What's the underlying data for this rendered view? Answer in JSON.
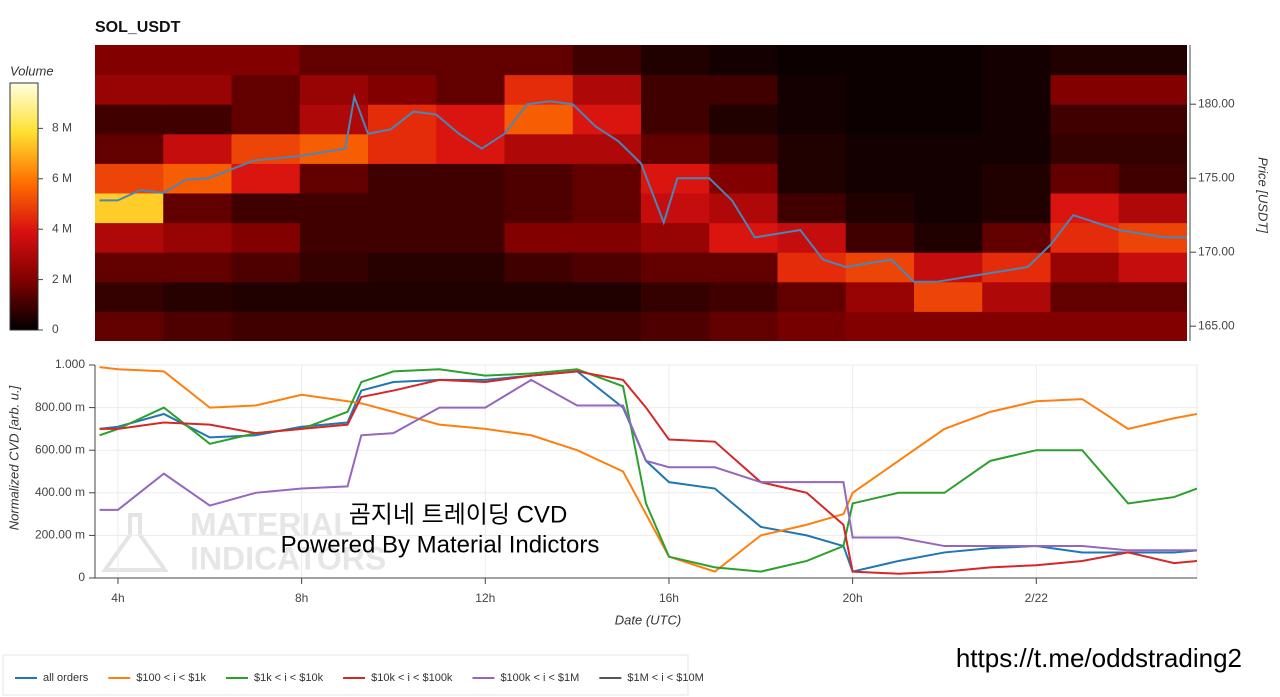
{
  "chart_data": [
    {
      "type": "heatmap",
      "title": "SOL_USDT",
      "y_label": "Price [USDT]",
      "colorbar_title": "Volume",
      "xlim": [
        3.5,
        27.5
      ],
      "ylim": [
        164,
        184
      ],
      "yticks": [
        {
          "value": 165,
          "label": "165.00"
        },
        {
          "value": 170,
          "label": "170.00"
        },
        {
          "value": 175,
          "label": "175.00"
        },
        {
          "value": 180,
          "label": "180.00"
        }
      ],
      "zlim": [
        0,
        9800000
      ],
      "zticks": [
        0,
        {
          "value": 2000000,
          "label": "2 M"
        },
        {
          "value": 4000000,
          "label": "4 M"
        },
        {
          "value": 6000000,
          "label": "6 M"
        },
        {
          "value": 8000000,
          "label": "8 M"
        }
      ],
      "xbins": [
        3.5,
        5,
        6.5,
        8,
        9.5,
        11,
        12.5,
        14,
        15.5,
        17,
        18.5,
        20,
        21.5,
        23,
        24.5,
        26,
        27.5
      ],
      "ybins": [
        164,
        166,
        168,
        170,
        172,
        174,
        176,
        178,
        180,
        182,
        184
      ],
      "z": [
        [
          1500000,
          1200000,
          1000000,
          1000000,
          1000000,
          1000000,
          1000000,
          1000000,
          1200000,
          1500000,
          1800000,
          2000000,
          2000000,
          2000000,
          2000000,
          2000000
        ],
        [
          800000,
          600000,
          500000,
          500000,
          500000,
          500000,
          500000,
          500000,
          800000,
          1000000,
          1500000,
          2500000,
          5000000,
          3000000,
          1500000,
          1500000
        ],
        [
          1500000,
          1500000,
          1200000,
          800000,
          600000,
          600000,
          1000000,
          1200000,
          1500000,
          1500000,
          4500000,
          5000000,
          3500000,
          4500000,
          2500000,
          3500000
        ],
        [
          3000000,
          2500000,
          2000000,
          1000000,
          1000000,
          1000000,
          2000000,
          2000000,
          2500000,
          4000000,
          3500000,
          1000000,
          500000,
          1500000,
          4500000,
          5000000
        ],
        [
          7500000,
          1500000,
          1000000,
          1000000,
          1000000,
          1000000,
          1200000,
          1500000,
          3500000,
          3000000,
          1000000,
          500000,
          300000,
          500000,
          4000000,
          3000000
        ],
        [
          5000000,
          5500000,
          4000000,
          1500000,
          1000000,
          1000000,
          1200000,
          1500000,
          4000000,
          2000000,
          500000,
          300000,
          300000,
          500000,
          1500000,
          1000000
        ],
        [
          1500000,
          3500000,
          5000000,
          5500000,
          4500000,
          4000000,
          3000000,
          3000000,
          1500000,
          1000000,
          500000,
          300000,
          300000,
          300000,
          800000,
          800000
        ],
        [
          1000000,
          1000000,
          1500000,
          3000000,
          4500000,
          4000000,
          5500000,
          4000000,
          1000000,
          500000,
          300000,
          200000,
          200000,
          300000,
          1000000,
          1000000
        ],
        [
          2500000,
          2500000,
          1500000,
          2500000,
          2000000,
          1500000,
          4500000,
          3000000,
          1000000,
          1000000,
          300000,
          200000,
          200000,
          300000,
          2000000,
          2000000
        ],
        [
          2000000,
          2000000,
          2000000,
          1500000,
          1500000,
          1500000,
          1500000,
          1000000,
          500000,
          300000,
          200000,
          200000,
          200000,
          300000,
          500000,
          500000
        ]
      ],
      "price": {
        "color": "#4a86b8",
        "x": [
          3.6,
          4,
          4.5,
          5,
          5.5,
          6,
          7,
          8,
          9,
          9.2,
          9.5,
          10,
          10.5,
          11,
          11.5,
          12,
          12.5,
          13,
          13.5,
          14,
          14.5,
          15,
          15.5,
          16,
          16.3,
          17,
          17.5,
          18,
          19,
          19.5,
          20,
          21,
          21.5,
          22,
          23,
          24,
          24.5,
          25,
          26,
          27,
          27.5
        ],
        "values": [
          173.5,
          173.5,
          174.2,
          174.0,
          174.9,
          175.0,
          176.2,
          176.5,
          177,
          180.5,
          178,
          178.3,
          179.5,
          179.3,
          178,
          177,
          178,
          180,
          180.2,
          180,
          178.5,
          177.5,
          176,
          172,
          175,
          175,
          173.5,
          171,
          171.5,
          169.5,
          169,
          169.5,
          168,
          168,
          168.5,
          169,
          170.5,
          172.5,
          171.5,
          171,
          171
        ]
      }
    },
    {
      "type": "line",
      "x_label": "Date (UTC)",
      "y_label": "Normalized CVD [arb. u.]",
      "grid": true,
      "xlim": [
        3.5,
        27.5
      ],
      "ylim": [
        0,
        1
      ],
      "xticks": [
        {
          "value": 4,
          "label": "4h"
        },
        {
          "value": 8,
          "label": "8h"
        },
        {
          "value": 12,
          "label": "12h"
        },
        {
          "value": 16,
          "label": "16h"
        },
        {
          "value": 20,
          "label": "20h"
        },
        {
          "value": 24,
          "label": "2/22"
        }
      ],
      "yticks": [
        0,
        {
          "value": 0.2,
          "label": "200.00 m"
        },
        {
          "value": 0.4,
          "label": "400.00 m"
        },
        {
          "value": 0.6,
          "label": "600.00 m"
        },
        {
          "value": 0.8,
          "label": "800.00 m"
        },
        {
          "value": 1,
          "label": "1.000"
        }
      ],
      "x": [
        3.6,
        4,
        5,
        6,
        7,
        8,
        9,
        9.3,
        10,
        11,
        12,
        13,
        14,
        15,
        15.5,
        16,
        17,
        18,
        19,
        19.8,
        20,
        21,
        22,
        23,
        24,
        25,
        26,
        27,
        27.5
      ],
      "series": [
        {
          "name": "all orders",
          "color": "#1f77b4",
          "values": [
            0.7,
            0.71,
            0.77,
            0.66,
            0.67,
            0.71,
            0.73,
            0.88,
            0.92,
            0.93,
            0.93,
            0.95,
            0.97,
            0.8,
            0.55,
            0.45,
            0.42,
            0.24,
            0.2,
            0.15,
            0.03,
            0.08,
            0.12,
            0.14,
            0.15,
            0.12,
            0.12,
            0.12,
            0.13
          ]
        },
        {
          "name": "$100 < i < $1k",
          "color": "#ff7f0e",
          "values": [
            0.99,
            0.98,
            0.97,
            0.8,
            0.81,
            0.86,
            0.83,
            0.82,
            0.78,
            0.72,
            0.7,
            0.67,
            0.6,
            0.5,
            0.3,
            0.1,
            0.03,
            0.2,
            0.25,
            0.3,
            0.4,
            0.55,
            0.7,
            0.78,
            0.83,
            0.84,
            0.7,
            0.75,
            0.77
          ]
        },
        {
          "name": "$1k < i < $10k",
          "color": "#2ca02c",
          "values": [
            0.67,
            0.7,
            0.8,
            0.63,
            0.68,
            0.7,
            0.78,
            0.92,
            0.97,
            0.98,
            0.95,
            0.96,
            0.98,
            0.9,
            0.35,
            0.1,
            0.05,
            0.03,
            0.08,
            0.15,
            0.35,
            0.4,
            0.4,
            0.55,
            0.6,
            0.6,
            0.35,
            0.38,
            0.42
          ]
        },
        {
          "name": "$10k < i < $100k",
          "color": "#d62728",
          "values": [
            0.7,
            0.7,
            0.73,
            0.72,
            0.68,
            0.7,
            0.72,
            0.85,
            0.88,
            0.93,
            0.92,
            0.95,
            0.97,
            0.93,
            0.8,
            0.65,
            0.64,
            0.45,
            0.4,
            0.25,
            0.03,
            0.02,
            0.03,
            0.05,
            0.06,
            0.08,
            0.12,
            0.07,
            0.08
          ]
        },
        {
          "name": "$100k < i < $1M",
          "color": "#9467bd",
          "values": [
            0.32,
            0.32,
            0.49,
            0.34,
            0.4,
            0.42,
            0.43,
            0.67,
            0.68,
            0.8,
            0.8,
            0.93,
            0.81,
            0.81,
            0.55,
            0.52,
            0.52,
            0.45,
            0.45,
            0.45,
            0.19,
            0.19,
            0.15,
            0.15,
            0.15,
            0.15,
            0.13,
            0.13,
            0.13
          ]
        },
        {
          "name": "$1M < i < $10M",
          "color": "#555555",
          "values": [
            null,
            null,
            null,
            null,
            null,
            null,
            null,
            null,
            null,
            null,
            null,
            null,
            null,
            null,
            null,
            null,
            null,
            null,
            null,
            null,
            null,
            null,
            null,
            null,
            null,
            null,
            null,
            null,
            null
          ]
        }
      ],
      "watermark": [
        "MATERIAL",
        "INDICATORS"
      ],
      "annotations": [
        "곰지네 트레이딩 CVD",
        "Powered By Material Indictors"
      ]
    }
  ],
  "footer_link": "https://t.me/oddstrading2"
}
